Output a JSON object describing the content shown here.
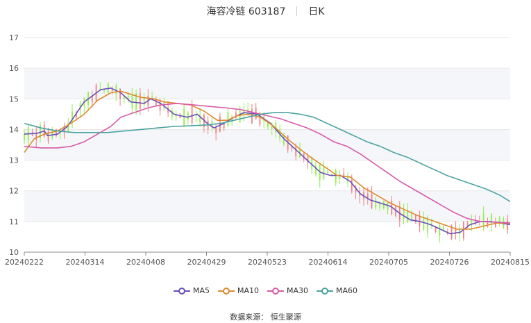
{
  "header": {
    "stock": "海容冷链 603187",
    "period": "日K"
  },
  "source_text": "数据来源： 恒生聚源",
  "colors": {
    "up": "#f08080",
    "down": "#90ee50",
    "grid": "#e6e6e6",
    "band": "#f5f6fa"
  },
  "chart_data": {
    "type": "candlestick",
    "ylim": [
      10,
      17
    ],
    "y_ticks": [
      "10",
      "11",
      "12",
      "13",
      "14",
      "15",
      "16",
      "17"
    ],
    "x_ticks": [
      "20240222",
      "20240314",
      "20240408",
      "20240429",
      "20240523",
      "20240614",
      "20240705",
      "20240726",
      "20240815"
    ],
    "series_ma": [
      {
        "name": "MA5",
        "color": "#6a4fb8",
        "points": [
          [
            0,
            13.85
          ],
          [
            8,
            13.88
          ],
          [
            12,
            13.95
          ],
          [
            14,
            13.8
          ],
          [
            20,
            13.85
          ],
          [
            26,
            14.1
          ],
          [
            36,
            14.9
          ],
          [
            46,
            15.3
          ],
          [
            52,
            15.35
          ],
          [
            58,
            15.2
          ],
          [
            64,
            14.9
          ],
          [
            72,
            14.85
          ],
          [
            76,
            15.0
          ],
          [
            82,
            14.85
          ],
          [
            90,
            14.5
          ],
          [
            98,
            14.4
          ],
          [
            104,
            14.5
          ],
          [
            110,
            14.2
          ],
          [
            114,
            14.05
          ],
          [
            120,
            14.2
          ],
          [
            126,
            14.4
          ],
          [
            132,
            14.55
          ],
          [
            140,
            14.5
          ],
          [
            148,
            14.2
          ],
          [
            156,
            13.7
          ],
          [
            164,
            13.3
          ],
          [
            170,
            13.0
          ],
          [
            178,
            12.6
          ],
          [
            184,
            12.5
          ],
          [
            190,
            12.5
          ],
          [
            196,
            12.3
          ],
          [
            202,
            11.9
          ],
          [
            208,
            11.7
          ],
          [
            214,
            11.6
          ],
          [
            220,
            11.5
          ],
          [
            226,
            11.25
          ],
          [
            232,
            11.05
          ],
          [
            238,
            11.0
          ],
          [
            244,
            10.9
          ],
          [
            250,
            10.75
          ],
          [
            256,
            10.6
          ],
          [
            262,
            10.65
          ],
          [
            268,
            10.9
          ],
          [
            274,
            11.0
          ],
          [
            280,
            11.0
          ],
          [
            286,
            10.95
          ],
          [
            292,
            10.9
          ]
        ]
      },
      {
        "name": "MA10",
        "color": "#e08a2e",
        "points": [
          [
            0,
            13.25
          ],
          [
            6,
            13.7
          ],
          [
            12,
            13.85
          ],
          [
            20,
            13.95
          ],
          [
            28,
            14.2
          ],
          [
            36,
            14.5
          ],
          [
            44,
            14.95
          ],
          [
            52,
            15.2
          ],
          [
            58,
            15.25
          ],
          [
            64,
            15.15
          ],
          [
            70,
            15.05
          ],
          [
            78,
            15.0
          ],
          [
            84,
            14.9
          ],
          [
            92,
            14.85
          ],
          [
            100,
            14.8
          ],
          [
            108,
            14.6
          ],
          [
            116,
            14.3
          ],
          [
            122,
            14.3
          ],
          [
            128,
            14.45
          ],
          [
            134,
            14.5
          ],
          [
            142,
            14.4
          ],
          [
            150,
            14.1
          ],
          [
            158,
            13.7
          ],
          [
            166,
            13.35
          ],
          [
            172,
            13.1
          ],
          [
            180,
            12.8
          ],
          [
            188,
            12.5
          ],
          [
            196,
            12.45
          ],
          [
            204,
            12.1
          ],
          [
            212,
            11.85
          ],
          [
            220,
            11.6
          ],
          [
            228,
            11.4
          ],
          [
            236,
            11.2
          ],
          [
            244,
            11.05
          ],
          [
            252,
            10.9
          ],
          [
            260,
            10.75
          ],
          [
            268,
            10.75
          ],
          [
            276,
            10.85
          ],
          [
            284,
            10.95
          ],
          [
            292,
            10.95
          ]
        ]
      },
      {
        "name": "MA30",
        "color": "#d85aa8",
        "points": [
          [
            0,
            13.45
          ],
          [
            10,
            13.4
          ],
          [
            20,
            13.4
          ],
          [
            28,
            13.45
          ],
          [
            36,
            13.6
          ],
          [
            44,
            13.85
          ],
          [
            52,
            14.1
          ],
          [
            58,
            14.4
          ],
          [
            66,
            14.55
          ],
          [
            74,
            14.7
          ],
          [
            82,
            14.8
          ],
          [
            92,
            14.85
          ],
          [
            102,
            14.8
          ],
          [
            112,
            14.75
          ],
          [
            122,
            14.7
          ],
          [
            130,
            14.65
          ],
          [
            138,
            14.55
          ],
          [
            146,
            14.45
          ],
          [
            154,
            14.35
          ],
          [
            162,
            14.2
          ],
          [
            170,
            14.05
          ],
          [
            178,
            13.85
          ],
          [
            186,
            13.6
          ],
          [
            194,
            13.45
          ],
          [
            202,
            13.2
          ],
          [
            210,
            12.9
          ],
          [
            218,
            12.6
          ],
          [
            226,
            12.3
          ],
          [
            234,
            12.05
          ],
          [
            242,
            11.8
          ],
          [
            250,
            11.55
          ],
          [
            258,
            11.3
          ],
          [
            266,
            11.1
          ],
          [
            274,
            11.0
          ],
          [
            282,
            10.98
          ],
          [
            292,
            10.95
          ]
        ]
      },
      {
        "name": "MA60",
        "color": "#4aa3a0",
        "points": [
          [
            0,
            14.2
          ],
          [
            10,
            14.05
          ],
          [
            20,
            13.95
          ],
          [
            30,
            13.9
          ],
          [
            40,
            13.9
          ],
          [
            50,
            13.9
          ],
          [
            60,
            13.95
          ],
          [
            70,
            14.0
          ],
          [
            80,
            14.05
          ],
          [
            90,
            14.1
          ],
          [
            100,
            14.12
          ],
          [
            110,
            14.15
          ],
          [
            118,
            14.2
          ],
          [
            126,
            14.3
          ],
          [
            134,
            14.4
          ],
          [
            142,
            14.5
          ],
          [
            150,
            14.55
          ],
          [
            158,
            14.55
          ],
          [
            166,
            14.5
          ],
          [
            174,
            14.4
          ],
          [
            182,
            14.2
          ],
          [
            190,
            14.0
          ],
          [
            198,
            13.8
          ],
          [
            206,
            13.6
          ],
          [
            214,
            13.45
          ],
          [
            222,
            13.25
          ],
          [
            230,
            13.1
          ],
          [
            238,
            12.9
          ],
          [
            246,
            12.7
          ],
          [
            254,
            12.5
          ],
          [
            262,
            12.35
          ],
          [
            270,
            12.2
          ],
          [
            278,
            12.05
          ],
          [
            286,
            11.85
          ],
          [
            292,
            11.65
          ]
        ]
      }
    ]
  }
}
